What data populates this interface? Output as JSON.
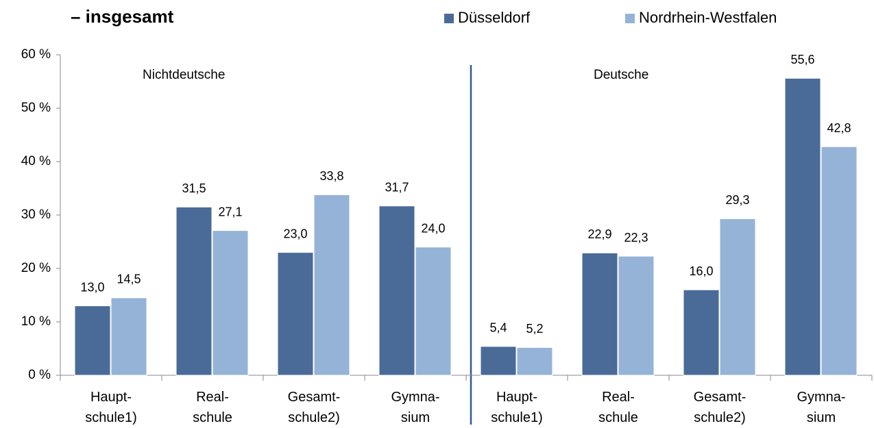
{
  "chart_data": {
    "type": "bar",
    "title": "– insgesamt",
    "annotations": [
      "Nichtdeutsche",
      "Deutsche"
    ],
    "categories": [
      "Haupt-\nschule1)",
      "Real-\nschule",
      "Gesamt-\nschule2)",
      "Gymna-\nsium",
      "Haupt-\nschule1)",
      "Real-\nschule",
      "Gesamt-\nschule2)",
      "Gymna-\nsium"
    ],
    "series": [
      {
        "name": "Düsseldorf",
        "color": "#4a6b98",
        "values": [
          13.0,
          31.5,
          23.0,
          31.7,
          5.4,
          22.9,
          16.0,
          55.6
        ],
        "value_labels": [
          "13,0",
          "31,5",
          "23,0",
          "31,7",
          "5,4",
          "22,9",
          "16,0",
          "55,6"
        ]
      },
      {
        "name": "Nordrhein-Westfalen",
        "color": "#95b3d7",
        "values": [
          14.5,
          27.1,
          33.8,
          24.0,
          5.2,
          22.3,
          29.3,
          42.8
        ],
        "value_labels": [
          "14,5",
          "27,1",
          "33,8",
          "24,0",
          "5,2",
          "22,3",
          "29,3",
          "42,8"
        ]
      }
    ],
    "ylim": [
      0,
      60
    ],
    "yticks": [
      {
        "value": 0,
        "label": "0 %"
      },
      {
        "value": 10,
        "label": "10 %"
      },
      {
        "value": 20,
        "label": "20 %"
      },
      {
        "value": 30,
        "label": "30 %"
      },
      {
        "value": 40,
        "label": "40 %"
      },
      {
        "value": 50,
        "label": "50 %"
      },
      {
        "value": 60,
        "label": "60 %"
      }
    ],
    "grid": false,
    "legend": "top"
  }
}
